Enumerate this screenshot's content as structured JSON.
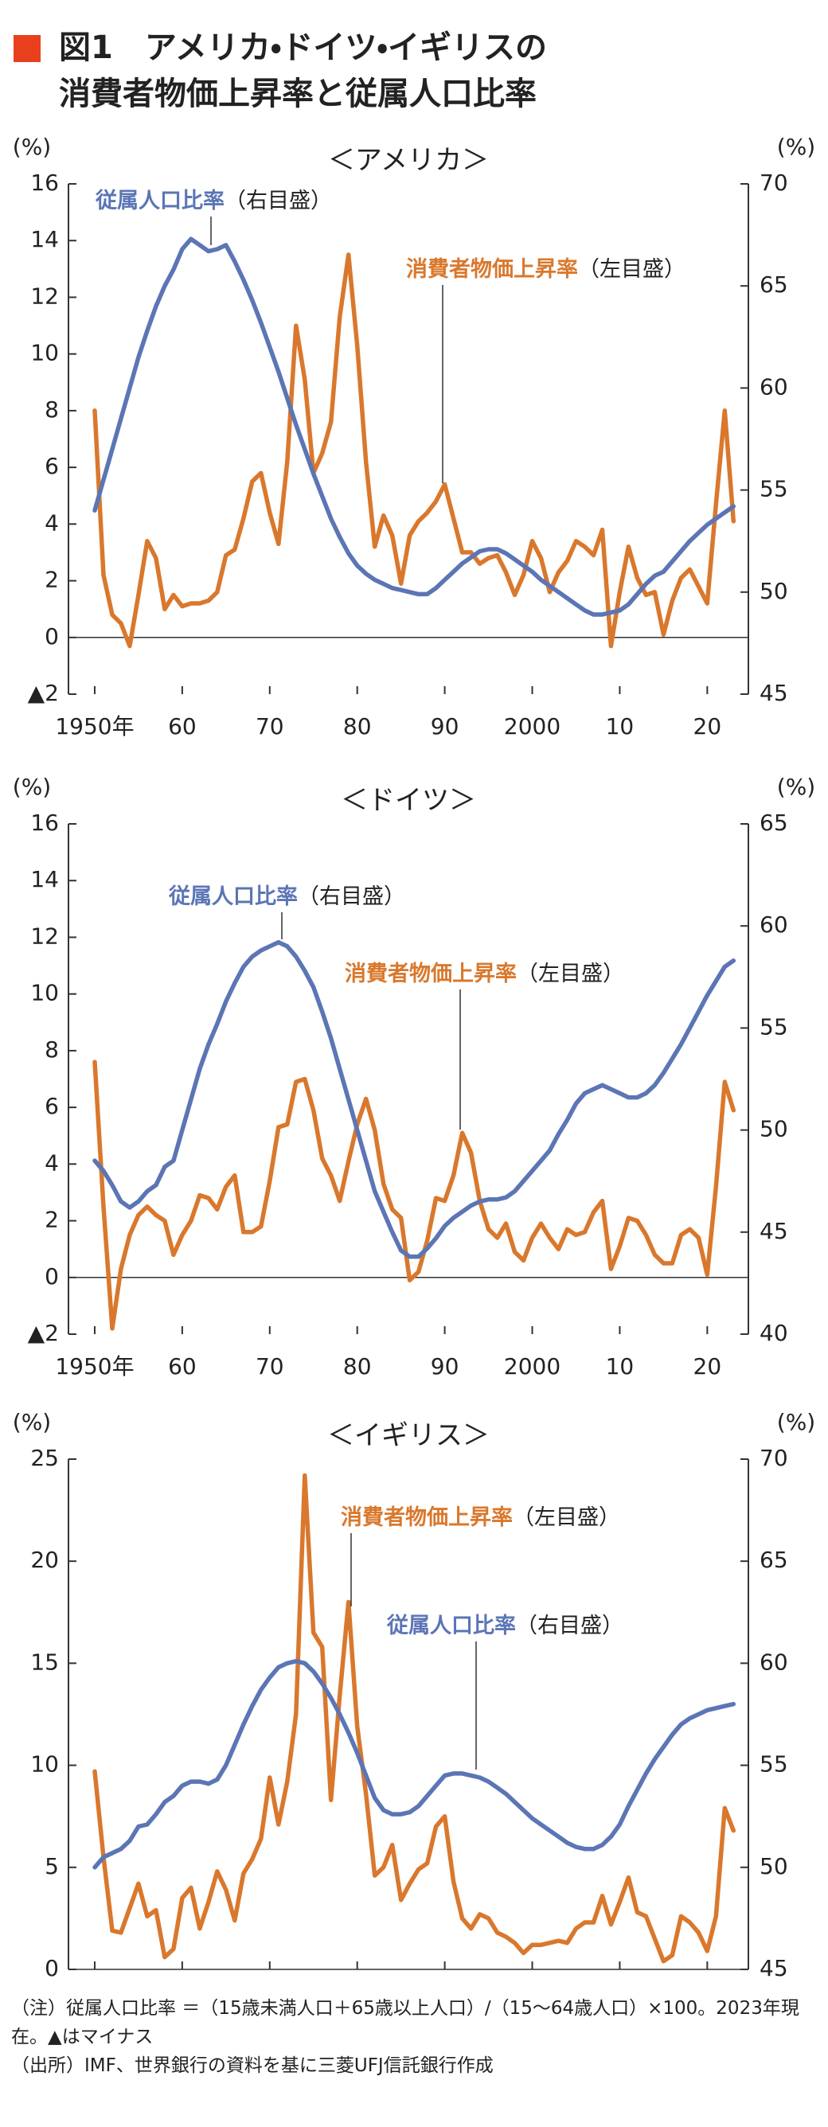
{
  "header": {
    "title_lines": [
      "図1　アメリカ・ドイツ・イギリスの",
      "消費者物価上昇率と従属人口比率"
    ]
  },
  "chart_data": [
    {
      "type": "line",
      "title": "＜アメリカ＞",
      "ylabel": "(%)",
      "y2label": "(%)",
      "x": [
        1950,
        1951,
        1952,
        1953,
        1954,
        1955,
        1956,
        1957,
        1958,
        1959,
        1960,
        1961,
        1962,
        1963,
        1964,
        1965,
        1966,
        1967,
        1968,
        1969,
        1970,
        1971,
        1972,
        1973,
        1974,
        1975,
        1976,
        1977,
        1978,
        1979,
        1980,
        1981,
        1982,
        1983,
        1984,
        1985,
        1986,
        1987,
        1988,
        1989,
        1990,
        1991,
        1992,
        1993,
        1994,
        1995,
        1996,
        1997,
        1998,
        1999,
        2000,
        2001,
        2002,
        2003,
        2004,
        2005,
        2006,
        2007,
        2008,
        2009,
        2010,
        2011,
        2012,
        2013,
        2014,
        2015,
        2016,
        2017,
        2018,
        2019,
        2020,
        2021,
        2022,
        2023
      ],
      "xlim": [
        1947,
        2024.7
      ],
      "xticks": [
        {
          "value": 1950,
          "label": "1950年"
        },
        {
          "value": 1960,
          "label": "60"
        },
        {
          "value": 1970,
          "label": "70"
        },
        {
          "value": 1980,
          "label": "80"
        },
        {
          "value": 1990,
          "label": "90"
        },
        2000,
        {
          "value": 2010,
          "label": "10"
        },
        {
          "value": 2020,
          "label": "20"
        }
      ],
      "ylim": [
        -2,
        16
      ],
      "yticks": [
        {
          "value": -2,
          "label": "▲2"
        },
        0,
        2,
        4,
        6,
        8,
        10,
        12,
        14,
        16
      ],
      "y2lim": [
        45,
        70
      ],
      "y2ticks": [
        45,
        50,
        55,
        60,
        65,
        70
      ],
      "series": [
        {
          "name": "消費者物価上昇率",
          "axis_note": "（左目盛）",
          "color": "#d9782d",
          "axis": "y",
          "values": [
            8.0,
            2.2,
            0.8,
            0.5,
            -0.3,
            1.5,
            3.4,
            2.8,
            1.0,
            1.5,
            1.1,
            1.2,
            1.2,
            1.3,
            1.6,
            2.9,
            3.1,
            4.2,
            5.5,
            5.8,
            4.4,
            3.3,
            6.2,
            11.0,
            9.1,
            5.8,
            6.5,
            7.6,
            11.3,
            13.5,
            10.3,
            6.2,
            3.2,
            4.3,
            3.6,
            1.9,
            3.6,
            4.1,
            4.4,
            4.8,
            5.4,
            4.2,
            3.0,
            3.0,
            2.6,
            2.8,
            2.9,
            2.3,
            1.5,
            2.2,
            3.4,
            2.8,
            1.6,
            2.3,
            2.7,
            3.4,
            3.2,
            2.9,
            3.8,
            -0.3,
            1.6,
            3.2,
            2.1,
            1.5,
            1.6,
            0.1,
            1.3,
            2.1,
            2.4,
            1.8,
            1.2,
            4.7,
            8.0,
            4.1
          ]
        },
        {
          "name": "従属人口比率",
          "axis_note": "（右目盛）",
          "color": "#5b75b5",
          "axis": "y2",
          "values": [
            54.0,
            55.5,
            57.0,
            58.5,
            60.0,
            61.5,
            62.8,
            64.0,
            65.0,
            65.8,
            66.8,
            67.3,
            67.0,
            66.7,
            66.8,
            67.0,
            66.2,
            65.3,
            64.3,
            63.2,
            62.0,
            60.8,
            59.5,
            58.2,
            57.0,
            55.8,
            54.7,
            53.6,
            52.7,
            51.9,
            51.3,
            50.9,
            50.6,
            50.4,
            50.2,
            50.1,
            50.0,
            49.9,
            49.9,
            50.2,
            50.6,
            51.0,
            51.4,
            51.7,
            52.0,
            52.1,
            52.1,
            51.9,
            51.6,
            51.3,
            51.0,
            50.6,
            50.3,
            50.0,
            49.7,
            49.4,
            49.1,
            48.9,
            48.9,
            49.0,
            49.1,
            49.4,
            49.9,
            50.4,
            50.8,
            51.0,
            51.5,
            52.0,
            52.5,
            52.9,
            53.3,
            53.6,
            53.9,
            54.2
          ]
        }
      ]
    },
    {
      "type": "line",
      "title": "＜ドイツ＞",
      "ylabel": "(%)",
      "y2label": "(%)",
      "x": [
        1950,
        1951,
        1952,
        1953,
        1954,
        1955,
        1956,
        1957,
        1958,
        1959,
        1960,
        1961,
        1962,
        1963,
        1964,
        1965,
        1966,
        1967,
        1968,
        1969,
        1970,
        1971,
        1972,
        1973,
        1974,
        1975,
        1976,
        1977,
        1978,
        1979,
        1980,
        1981,
        1982,
        1983,
        1984,
        1985,
        1986,
        1987,
        1988,
        1989,
        1990,
        1991,
        1992,
        1993,
        1994,
        1995,
        1996,
        1997,
        1998,
        1999,
        2000,
        2001,
        2002,
        2003,
        2004,
        2005,
        2006,
        2007,
        2008,
        2009,
        2010,
        2011,
        2012,
        2013,
        2014,
        2015,
        2016,
        2017,
        2018,
        2019,
        2020,
        2021,
        2022,
        2023
      ],
      "xlim": [
        1947,
        2024.7
      ],
      "xticks": [
        {
          "value": 1950,
          "label": "1950年"
        },
        {
          "value": 1960,
          "label": "60"
        },
        {
          "value": 1970,
          "label": "70"
        },
        {
          "value": 1980,
          "label": "80"
        },
        {
          "value": 1990,
          "label": "90"
        },
        2000,
        {
          "value": 2010,
          "label": "10"
        },
        {
          "value": 2020,
          "label": "20"
        }
      ],
      "ylim": [
        -2,
        16
      ],
      "yticks": [
        {
          "value": -2,
          "label": "▲2"
        },
        0,
        2,
        4,
        6,
        8,
        10,
        12,
        14,
        16
      ],
      "y2lim": [
        40,
        65
      ],
      "y2ticks": [
        40,
        45,
        50,
        55,
        60,
        65
      ],
      "series": [
        {
          "name": "消費者物価上昇率",
          "axis_note": "（左目盛）",
          "color": "#d9782d",
          "axis": "y",
          "values": [
            7.6,
            2.5,
            -1.8,
            0.3,
            1.5,
            2.2,
            2.5,
            2.2,
            2.0,
            0.8,
            1.5,
            2.0,
            2.9,
            2.8,
            2.4,
            3.2,
            3.6,
            1.6,
            1.6,
            1.8,
            3.4,
            5.3,
            5.4,
            6.9,
            7.0,
            5.9,
            4.2,
            3.6,
            2.7,
            4.1,
            5.4,
            6.3,
            5.2,
            3.3,
            2.4,
            2.1,
            -0.1,
            0.2,
            1.3,
            2.8,
            2.7,
            3.6,
            5.1,
            4.4,
            2.7,
            1.7,
            1.4,
            1.9,
            0.9,
            0.6,
            1.4,
            1.9,
            1.4,
            1.0,
            1.7,
            1.5,
            1.6,
            2.3,
            2.7,
            0.3,
            1.1,
            2.1,
            2.0,
            1.5,
            0.8,
            0.5,
            0.5,
            1.5,
            1.7,
            1.4,
            0.1,
            3.2,
            6.9,
            5.9
          ]
        },
        {
          "name": "従属人口比率",
          "axis_note": "（右目盛）",
          "color": "#5b75b5",
          "axis": "y2",
          "values": [
            48.5,
            48.0,
            47.3,
            46.5,
            46.2,
            46.5,
            47.0,
            47.3,
            48.2,
            48.5,
            50.0,
            51.5,
            53.0,
            54.2,
            55.2,
            56.3,
            57.2,
            58.0,
            58.5,
            58.8,
            59.0,
            59.2,
            59.0,
            58.5,
            57.8,
            57.0,
            55.8,
            54.5,
            53.0,
            51.5,
            50.0,
            48.5,
            47.0,
            46.0,
            45.0,
            44.1,
            43.8,
            43.8,
            44.2,
            44.7,
            45.3,
            45.7,
            46.0,
            46.3,
            46.5,
            46.6,
            46.6,
            46.7,
            47.0,
            47.5,
            48.0,
            48.5,
            49.0,
            49.8,
            50.5,
            51.3,
            51.8,
            52.0,
            52.2,
            52.0,
            51.8,
            51.6,
            51.6,
            51.8,
            52.2,
            52.8,
            53.5,
            54.2,
            55.0,
            55.8,
            56.6,
            57.3,
            58.0,
            58.3
          ]
        }
      ]
    },
    {
      "type": "line",
      "title": "＜イギリス＞",
      "ylabel": "(%)",
      "y2label": "(%)",
      "x": [
        1950,
        1951,
        1952,
        1953,
        1954,
        1955,
        1956,
        1957,
        1958,
        1959,
        1960,
        1961,
        1962,
        1963,
        1964,
        1965,
        1966,
        1967,
        1968,
        1969,
        1970,
        1971,
        1972,
        1973,
        1974,
        1975,
        1976,
        1977,
        1978,
        1979,
        1980,
        1981,
        1982,
        1983,
        1984,
        1985,
        1986,
        1987,
        1988,
        1989,
        1990,
        1991,
        1992,
        1993,
        1994,
        1995,
        1996,
        1997,
        1998,
        1999,
        2000,
        2001,
        2002,
        2003,
        2004,
        2005,
        2006,
        2007,
        2008,
        2009,
        2010,
        2011,
        2012,
        2013,
        2014,
        2015,
        2016,
        2017,
        2018,
        2019,
        2020,
        2021,
        2022,
        2023
      ],
      "xlim": [
        1947,
        2024.7
      ],
      "xticks": [
        {
          "value": 1950,
          "label": "1950年"
        },
        {
          "value": 1960,
          "label": "60"
        },
        {
          "value": 1970,
          "label": "70"
        },
        {
          "value": 1980,
          "label": "80"
        },
        {
          "value": 1990,
          "label": "90"
        },
        2000,
        {
          "value": 2010,
          "label": "10"
        },
        {
          "value": 2020,
          "label": "20"
        }
      ],
      "ylim": [
        0,
        25
      ],
      "yticks": [
        0,
        5,
        10,
        15,
        20,
        25
      ],
      "y2lim": [
        45,
        70
      ],
      "y2ticks": [
        45,
        50,
        55,
        60,
        65,
        70
      ],
      "series": [
        {
          "name": "消費者物価上昇率",
          "axis_note": "（左目盛）",
          "color": "#d9782d",
          "axis": "y",
          "values": [
            9.7,
            5.5,
            1.9,
            1.8,
            3.0,
            4.2,
            2.6,
            2.9,
            0.6,
            1.0,
            3.5,
            4.0,
            2.0,
            3.3,
            4.8,
            3.9,
            2.4,
            4.7,
            5.4,
            6.4,
            9.4,
            7.1,
            9.2,
            12.5,
            24.2,
            16.5,
            15.8,
            8.3,
            13.4,
            18.0,
            11.9,
            8.6,
            4.6,
            5.0,
            6.1,
            3.4,
            4.2,
            4.9,
            5.2,
            7.0,
            7.5,
            4.3,
            2.5,
            2.0,
            2.7,
            2.5,
            1.8,
            1.6,
            1.3,
            0.8,
            1.2,
            1.2,
            1.3,
            1.4,
            1.3,
            2.0,
            2.3,
            2.3,
            3.6,
            2.2,
            3.3,
            4.5,
            2.8,
            2.6,
            1.5,
            0.4,
            0.7,
            2.6,
            2.3,
            1.8,
            0.9,
            2.6,
            7.9,
            6.8
          ]
        },
        {
          "name": "従属人口比率",
          "axis_note": "（右目盛）",
          "color": "#5b75b5",
          "axis": "y2",
          "values": [
            50.0,
            50.5,
            50.7,
            50.9,
            51.3,
            52.0,
            52.1,
            52.6,
            53.2,
            53.5,
            54.0,
            54.2,
            54.2,
            54.1,
            54.3,
            55.0,
            56.0,
            57.0,
            57.9,
            58.7,
            59.3,
            59.8,
            60.0,
            60.1,
            60.0,
            59.6,
            59.0,
            58.3,
            57.5,
            56.6,
            55.6,
            54.5,
            53.4,
            52.8,
            52.6,
            52.6,
            52.7,
            53.0,
            53.5,
            54.0,
            54.5,
            54.6,
            54.6,
            54.5,
            54.4,
            54.2,
            53.9,
            53.6,
            53.2,
            52.8,
            52.4,
            52.1,
            51.8,
            51.5,
            51.2,
            51.0,
            50.9,
            50.9,
            51.1,
            51.5,
            52.1,
            53.0,
            53.8,
            54.6,
            55.3,
            55.9,
            56.5,
            57.0,
            57.3,
            57.5,
            57.7,
            57.8,
            57.9,
            58.0
          ]
        }
      ]
    }
  ],
  "notes": [
    "（注）従属人口比率 ＝（15歳未満人口＋65歳以上人口）/（15〜64歳人口）×100。2023年現在。▲はマイナス",
    "（出所）IMF、世界銀行の資料を基に三菱UFJ信託銀行作成"
  ]
}
